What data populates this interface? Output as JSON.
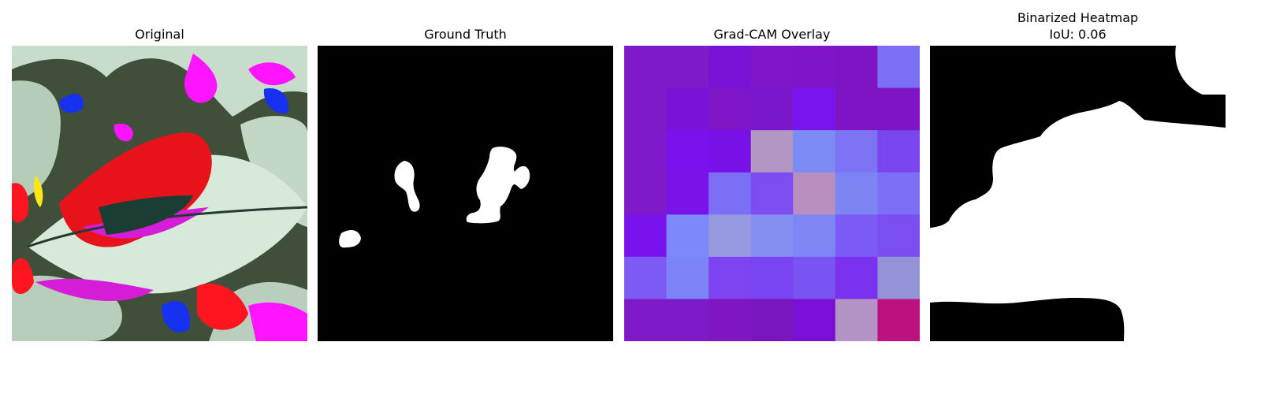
{
  "panels": [
    {
      "title": "Original"
    },
    {
      "title": "Ground Truth"
    },
    {
      "title": "Grad-CAM Overlay"
    },
    {
      "title": "Binarized Heatmap",
      "subtitle": "IoU: 0.06"
    }
  ],
  "gradcam": {
    "grid_size": 7,
    "cell_colors": [
      [
        "#7f1ac8",
        "#7f1ac8",
        "#7a12d6",
        "#7f16c8",
        "#7f14c8",
        "#7f14c4",
        "#7b6ff5"
      ],
      [
        "#7f1ac8",
        "#7a12d8",
        "#7f16c8",
        "#7a16cc",
        "#7a14ee",
        "#7f14c4",
        "#7f14c4"
      ],
      [
        "#7f1ac8",
        "#7a12ee",
        "#7a10e8",
        "#b396c4",
        "#7d8cf5",
        "#7d74f5",
        "#7a44ef"
      ],
      [
        "#7f1ac8",
        "#7a12ea",
        "#7b6ff5",
        "#7e4df2",
        "#b98fc0",
        "#7d84f4",
        "#7c6ef5"
      ],
      [
        "#7a12ee",
        "#7d88fa",
        "#959ae0",
        "#8491f2",
        "#7d86f4",
        "#7b5bf4",
        "#7b4ef1"
      ],
      [
        "#7c5cf4",
        "#7d84f7",
        "#7e44f2",
        "#7a44f2",
        "#7a54f2",
        "#7a32ef",
        "#9493d8"
      ],
      [
        "#7f1ac8",
        "#7f1ac8",
        "#7f16c4",
        "#7a16c0",
        "#7a10d8",
        "#b394c4",
        "#bb1280"
      ]
    ]
  }
}
